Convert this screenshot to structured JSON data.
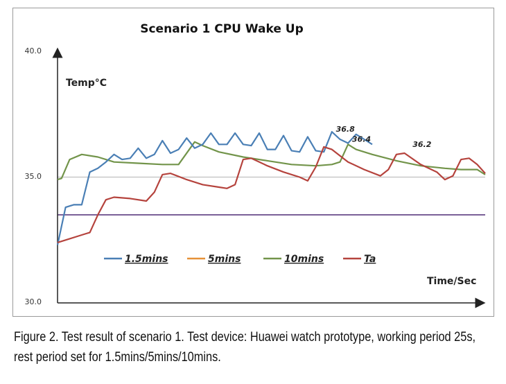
{
  "chart_data": {
    "type": "line",
    "title": "Scenario 1 CPU  Wake Up",
    "ylabel": "Temp°C",
    "xlabel": "Time/Sec",
    "ylim": [
      30.0,
      40.0
    ],
    "yticks": [
      "40.0",
      "35.0",
      "30.0"
    ],
    "grid": false,
    "legend_position": "bottom-center",
    "reference_lines": [
      {
        "y": 35.0,
        "color": "#bfbfbf"
      },
      {
        "y": 33.5,
        "color": "#5b3c80"
      }
    ],
    "series": [
      {
        "name": "1.5mins",
        "color": "#4a7fb5",
        "points": [
          [
            0,
            32.3
          ],
          [
            2,
            33.8
          ],
          [
            4,
            33.9
          ],
          [
            6,
            33.9
          ],
          [
            8,
            35.2
          ],
          [
            10,
            35.35
          ],
          [
            12,
            35.6
          ],
          [
            14,
            35.9
          ],
          [
            16,
            35.7
          ],
          [
            18,
            35.75
          ],
          [
            20,
            36.15
          ],
          [
            22,
            35.75
          ],
          [
            24,
            35.9
          ],
          [
            26,
            36.45
          ],
          [
            28,
            35.95
          ],
          [
            30,
            36.1
          ],
          [
            32,
            36.55
          ],
          [
            34,
            36.15
          ],
          [
            36,
            36.3
          ],
          [
            38,
            36.75
          ],
          [
            40,
            36.3
          ],
          [
            42,
            36.3
          ],
          [
            44,
            36.75
          ],
          [
            46,
            36.3
          ],
          [
            48,
            36.25
          ],
          [
            50,
            36.75
          ],
          [
            52,
            36.1
          ],
          [
            54,
            36.1
          ],
          [
            56,
            36.65
          ],
          [
            58,
            36.05
          ],
          [
            60,
            36.0
          ],
          [
            62,
            36.6
          ],
          [
            64,
            36.05
          ],
          [
            66,
            36.0
          ],
          [
            68,
            36.8
          ],
          [
            70,
            36.5
          ],
          [
            72,
            36.35
          ],
          [
            74,
            36.7
          ],
          [
            76,
            36.5
          ],
          [
            78,
            36.3
          ]
        ]
      },
      {
        "name": "5mins",
        "color": "#e69138",
        "points": []
      },
      {
        "name": "10mins",
        "color": "#72944a",
        "points": [
          [
            0,
            34.9
          ],
          [
            1,
            34.95
          ],
          [
            3,
            35.7
          ],
          [
            6,
            35.9
          ],
          [
            10,
            35.8
          ],
          [
            14,
            35.6
          ],
          [
            20,
            35.55
          ],
          [
            26,
            35.5
          ],
          [
            30,
            35.5
          ],
          [
            34,
            36.4
          ],
          [
            36,
            36.25
          ],
          [
            40,
            36.0
          ],
          [
            46,
            35.8
          ],
          [
            52,
            35.65
          ],
          [
            58,
            35.5
          ],
          [
            64,
            35.45
          ],
          [
            68,
            35.5
          ],
          [
            70,
            35.6
          ],
          [
            72,
            36.3
          ],
          [
            74,
            36.1
          ],
          [
            78,
            35.9
          ],
          [
            84,
            35.65
          ],
          [
            90,
            35.45
          ],
          [
            96,
            35.35
          ],
          [
            100,
            35.3
          ],
          [
            104,
            35.3
          ],
          [
            106,
            35.1
          ]
        ]
      },
      {
        "name": "Ta",
        "color": "#b5433d",
        "points": [
          [
            0,
            32.4
          ],
          [
            2,
            32.5
          ],
          [
            6,
            32.7
          ],
          [
            8,
            32.8
          ],
          [
            10,
            33.5
          ],
          [
            12,
            34.1
          ],
          [
            14,
            34.2
          ],
          [
            18,
            34.15
          ],
          [
            22,
            34.05
          ],
          [
            24,
            34.4
          ],
          [
            26,
            35.1
          ],
          [
            28,
            35.15
          ],
          [
            32,
            34.9
          ],
          [
            36,
            34.7
          ],
          [
            40,
            34.6
          ],
          [
            42,
            34.55
          ],
          [
            44,
            34.7
          ],
          [
            46,
            35.7
          ],
          [
            48,
            35.75
          ],
          [
            52,
            35.45
          ],
          [
            56,
            35.2
          ],
          [
            60,
            35.0
          ],
          [
            62,
            34.85
          ],
          [
            64,
            35.4
          ],
          [
            66,
            36.2
          ],
          [
            68,
            36.1
          ],
          [
            72,
            35.6
          ],
          [
            76,
            35.3
          ],
          [
            80,
            35.05
          ],
          [
            82,
            35.3
          ],
          [
            84,
            35.9
          ],
          [
            86,
            35.95
          ],
          [
            90,
            35.5
          ],
          [
            94,
            35.2
          ],
          [
            96,
            34.9
          ],
          [
            98,
            35.05
          ],
          [
            100,
            35.7
          ],
          [
            102,
            35.75
          ],
          [
            104,
            35.5
          ],
          [
            106,
            35.15
          ]
        ]
      }
    ],
    "annotations": [
      {
        "text": "36.8",
        "x": 69,
        "y": 36.8
      },
      {
        "text": "36.4",
        "x": 73,
        "y": 36.4
      },
      {
        "text": "36.2",
        "x": 88,
        "y": 36.2
      }
    ]
  },
  "caption": "Figure 2. Test result of scenario 1. Test device: Huawei watch prototype, working period 25s, rest period set for 1.5mins/5mins/10mins."
}
